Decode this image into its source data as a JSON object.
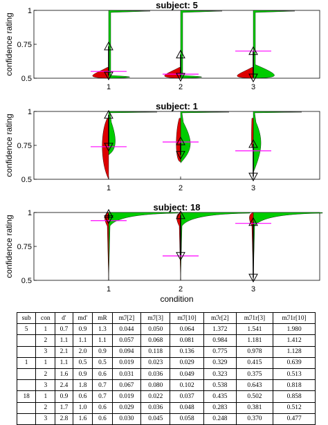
{
  "chart_data": [
    {
      "type": "violin",
      "title": "subject: 5",
      "ylabel": "confidence rating",
      "xlabel": "",
      "categories": [
        "1",
        "2",
        "3"
      ],
      "ylim": [
        0.5,
        1.0
      ],
      "yticks": [
        "0.5",
        "0.75",
        "1"
      ],
      "red_tail_to": [
        0.5,
        0.5,
        0.5
      ],
      "green_tail_to": [
        1.0,
        1.0,
        1.0
      ],
      "triangle_up": [
        0.735,
        0.675,
        0.7
      ],
      "triangle_down": [
        0.52,
        0.51,
        0.505
      ],
      "magenta_mean": [
        0.55,
        0.53,
        0.7
      ],
      "colors": {
        "incorrect": "#dd0000",
        "correct": "#00cc00",
        "mean_line": "#ff00ff"
      }
    },
    {
      "type": "violin",
      "title": "subject: 1",
      "ylabel": "confidence rating",
      "xlabel": "",
      "categories": [
        "1",
        "2",
        "3"
      ],
      "ylim": [
        0.5,
        1.0
      ],
      "yticks": [
        "0.5",
        "0.75",
        "1"
      ],
      "red_tail_to": [
        0.5,
        0.63,
        0.8
      ],
      "green_tail_to": [
        1.0,
        1.0,
        1.0
      ],
      "triangle_up": [
        0.975,
        0.78,
        0.76
      ],
      "triangle_down": [
        0.74,
        0.68,
        0.52
      ],
      "magenta_mean": [
        0.74,
        0.775,
        0.71
      ],
      "colors": {
        "incorrect": "#dd0000",
        "correct": "#00cc00",
        "mean_line": "#ff00ff"
      }
    },
    {
      "type": "violin",
      "title": "subject: 18",
      "ylabel": "confidence rating",
      "xlabel": "condition",
      "categories": [
        "1",
        "2",
        "3"
      ],
      "ylim": [
        0.5,
        1.0
      ],
      "yticks": [
        "0.5",
        "0.75",
        "1"
      ],
      "red_tail_to": [
        0.5,
        0.5,
        0.5
      ],
      "green_tail_to": [
        1.0,
        1.0,
        1.0
      ],
      "triangle_up": [
        0.99,
        0.98,
        0.93
      ],
      "triangle_down": [
        0.95,
        0.68,
        0.52
      ],
      "magenta_mean": [
        0.94,
        0.68,
        0.92
      ],
      "colors": {
        "incorrect": "#dd0000",
        "correct": "#00cc00",
        "mean_line": "#ff00ff"
      }
    }
  ],
  "table": {
    "headers": [
      "sub",
      "con",
      "d′",
      "md′",
      "mR",
      "mℐ[2]",
      "mℐ[3]",
      "mℐ[10]",
      "mℐr[2]",
      "mℐ1r[3]",
      "mℐ1r[10]"
    ],
    "rows": [
      [
        "5",
        "1",
        "0.7",
        "0.9",
        "1.3",
        "0.044",
        "0.050",
        "0.064",
        "1.372",
        "1.541",
        "1.980"
      ],
      [
        "",
        "2",
        "1.1",
        "1.1",
        "1.1",
        "0.057",
        "0.068",
        "0.081",
        "0.984",
        "1.181",
        "1.412"
      ],
      [
        "",
        "3",
        "2.1",
        "2.0",
        "0.9",
        "0.094",
        "0.118",
        "0.136",
        "0.775",
        "0.978",
        "1.128"
      ],
      [
        "1",
        "1",
        "1.1",
        "0.5",
        "0.5",
        "0.019",
        "0.023",
        "0.029",
        "0.329",
        "0.415",
        "0.639"
      ],
      [
        "",
        "2",
        "1.6",
        "0.9",
        "0.6",
        "0.031",
        "0.036",
        "0.049",
        "0.323",
        "0.375",
        "0.513"
      ],
      [
        "",
        "3",
        "2.4",
        "1.8",
        "0.7",
        "0.067",
        "0.080",
        "0.102",
        "0.538",
        "0.643",
        "0.818"
      ],
      [
        "18",
        "1",
        "0.9",
        "0.6",
        "0.7",
        "0.019",
        "0.022",
        "0.037",
        "0.435",
        "0.502",
        "0.858"
      ],
      [
        "",
        "2",
        "1.7",
        "1.0",
        "0.6",
        "0.029",
        "0.036",
        "0.048",
        "0.283",
        "0.381",
        "0.512"
      ],
      [
        "",
        "3",
        "2.8",
        "1.6",
        "0.6",
        "0.030",
        "0.045",
        "0.058",
        "0.248",
        "0.370",
        "0.477"
      ]
    ]
  }
}
